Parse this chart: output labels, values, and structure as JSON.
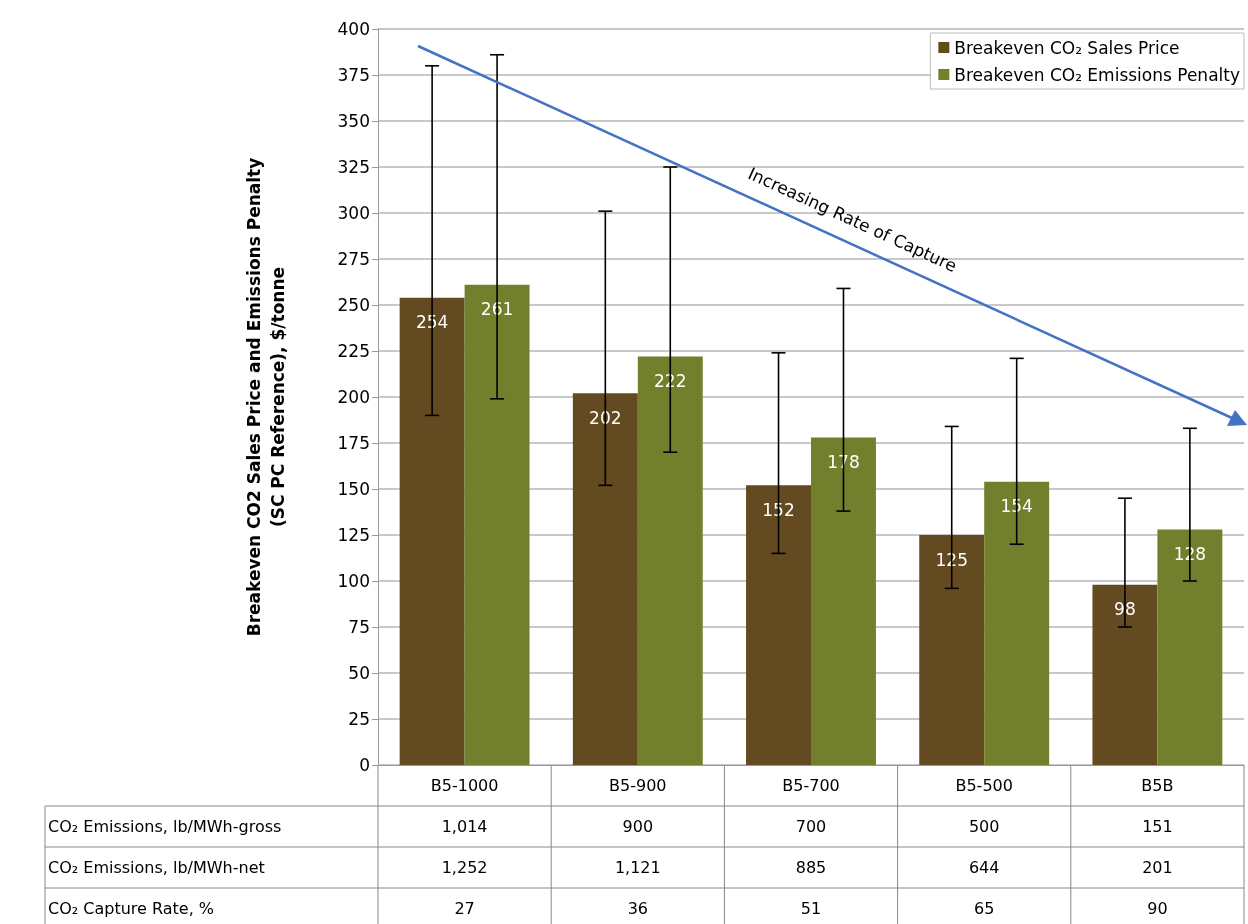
{
  "chart_data": {
    "type": "bar",
    "ylabel": "Breakeven CO2 Sales Price and Emissions Penalty\n(SC PC Reference), $/tonne",
    "categories": [
      "B5-1000",
      "B5-900",
      "B5-700",
      "B5-500",
      "B5B"
    ],
    "series": [
      {
        "name": "Breakeven CO₂ Sales Price",
        "color": "#634a21",
        "values": [
          254,
          202,
          152,
          125,
          98
        ],
        "errors": [
          [
            190,
            380
          ],
          [
            152,
            301
          ],
          [
            115,
            224
          ],
          [
            96,
            184
          ],
          [
            75,
            145
          ]
        ]
      },
      {
        "name": "Breakeven CO₂ Emissions Penalty",
        "color": "#72802d",
        "values": [
          261,
          222,
          178,
          154,
          128
        ],
        "errors": [
          [
            199,
            386
          ],
          [
            170,
            325
          ],
          [
            138,
            259
          ],
          [
            120,
            221
          ],
          [
            100,
            183
          ]
        ]
      }
    ],
    "ylim": [
      0,
      400
    ],
    "yticks": [
      0,
      25,
      50,
      75,
      100,
      125,
      150,
      175,
      200,
      225,
      250,
      275,
      300,
      325,
      350,
      375,
      400
    ],
    "grid": "y",
    "legend": "top right",
    "data_labels": true,
    "annotations": [
      "Increasing Rate of Capture",
      "CO₂ Emissions, lb/MWh-gross",
      "1,014",
      "900",
      "700",
      "500",
      "151",
      "CO₂ Emissions, lb/MWh-net",
      "1,252",
      "1,121",
      "885",
      "644",
      "201",
      "CO₂ Capture Rate, %",
      "27",
      "36",
      "51",
      "65",
      "90"
    ]
  }
}
